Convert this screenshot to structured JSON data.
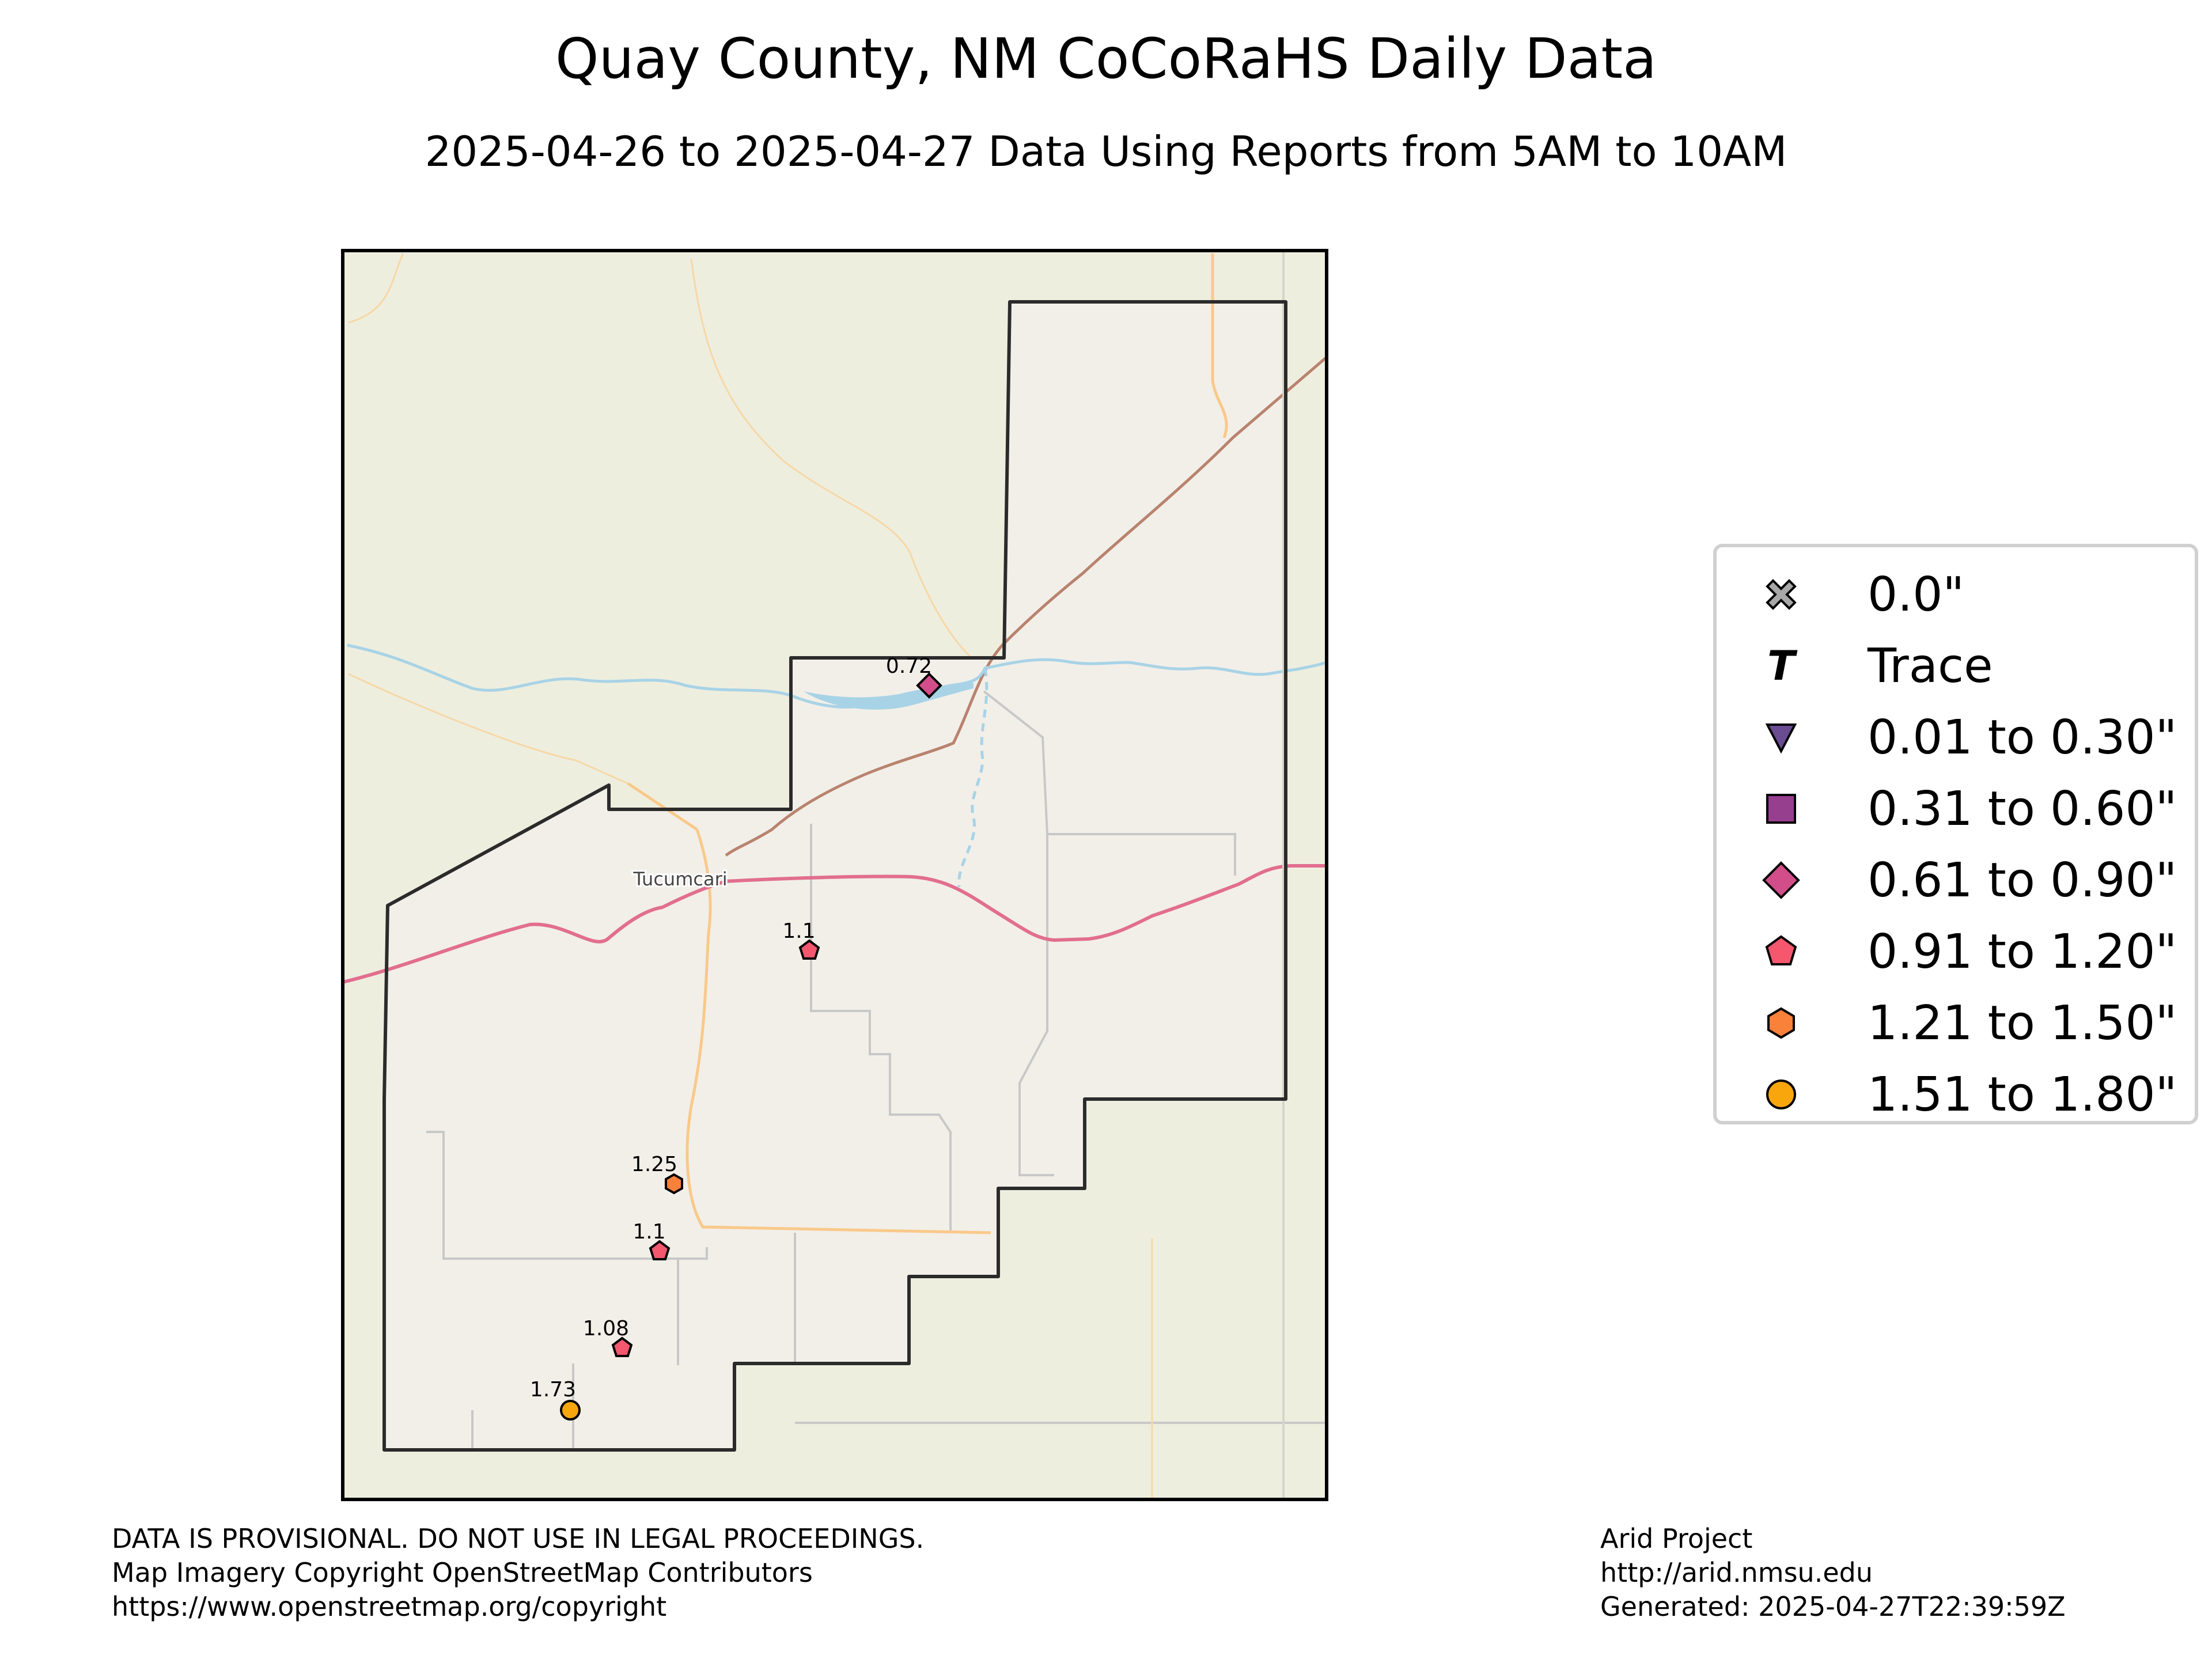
{
  "title": "Quay County, NM CoCoRaHS Daily Data",
  "subtitle": "2025-04-26 to 2025-04-27 Data Using Reports from 5AM to 10AM",
  "map": {
    "place_labels": [
      {
        "name": "Tucumcari"
      }
    ],
    "colors": {
      "county_fill": "#f2efe9",
      "background": "#eeeedf",
      "interstate": "#e26e8e",
      "railway": "#b9836e",
      "highway": "#f9c98a",
      "water": "#a8d3e6",
      "boundary": "#2b2b2b"
    }
  },
  "stations": [
    {
      "value": "0.72",
      "category": "0.61 to 0.90\""
    },
    {
      "value": "1.1",
      "category": "0.91 to 1.20\""
    },
    {
      "value": "1.25",
      "category": "1.21 to 1.50\""
    },
    {
      "value": "1.1",
      "category": "0.91 to 1.20\""
    },
    {
      "value": "1.08",
      "category": "0.91 to 1.20\""
    },
    {
      "value": "1.73",
      "category": "1.51 to 1.80\""
    }
  ],
  "legend": {
    "items": [
      {
        "label": "0.0\"",
        "icon": "x-cross-icon",
        "color": "#a8a8a8"
      },
      {
        "label": "Trace",
        "icon": "trace-t-icon",
        "color": "#000000"
      },
      {
        "label": "0.01 to 0.30\"",
        "icon": "triangle-down-icon",
        "color": "#6a4c93"
      },
      {
        "label": "0.31 to 0.60\"",
        "icon": "square-icon",
        "color": "#963f8f"
      },
      {
        "label": "0.61 to 0.90\"",
        "icon": "diamond-icon",
        "color": "#d24e8a"
      },
      {
        "label": "0.91 to 1.20\"",
        "icon": "pentagon-icon",
        "color": "#f4576e"
      },
      {
        "label": "1.21 to 1.50\"",
        "icon": "hexagon-icon",
        "color": "#f9813a"
      },
      {
        "label": "1.51 to 1.80\"",
        "icon": "circle-icon",
        "color": "#f8a60c"
      }
    ]
  },
  "footer": {
    "left_lines": [
      "DATA IS PROVISIONAL. DO NOT USE IN LEGAL PROCEEDINGS.",
      "Map Imagery Copyright OpenStreetMap Contributors",
      "https://www.openstreetmap.org/copyright"
    ],
    "right_lines": [
      "Arid Project",
      "http://arid.nmsu.edu",
      "Generated: 2025-04-27T22:39:59Z"
    ]
  }
}
